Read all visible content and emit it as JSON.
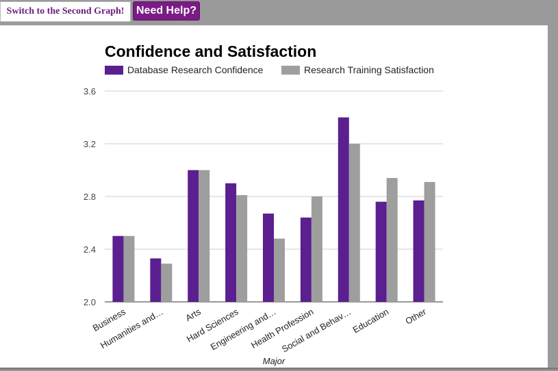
{
  "toolbar": {
    "switch_label": "Switch to the Second Graph!",
    "help_label": "Need Help?"
  },
  "chart_data": {
    "type": "bar",
    "title": "Confidence and Satisfaction",
    "xlabel": "Major",
    "ylabel": "",
    "ylim": [
      2.0,
      3.6
    ],
    "yticks": [
      "2.0",
      "2.4",
      "2.8",
      "3.2",
      "3.6"
    ],
    "categories": [
      "Business",
      "Humanities and…",
      "Arts",
      "Hard Sciences",
      "Engineering and…",
      "Health Profession",
      "Social and Behav…",
      "Education",
      "Other"
    ],
    "series": [
      {
        "name": "Database Research Confidence",
        "color": "#5b1f8f",
        "values": [
          2.5,
          2.33,
          3.0,
          2.9,
          2.67,
          2.64,
          3.4,
          2.76,
          2.77
        ]
      },
      {
        "name": "Research Training Satisfaction",
        "color": "#9e9e9e",
        "values": [
          2.5,
          2.29,
          3.0,
          2.81,
          2.48,
          2.8,
          3.2,
          2.94,
          2.91
        ]
      }
    ],
    "grid": true,
    "legend": "top"
  }
}
